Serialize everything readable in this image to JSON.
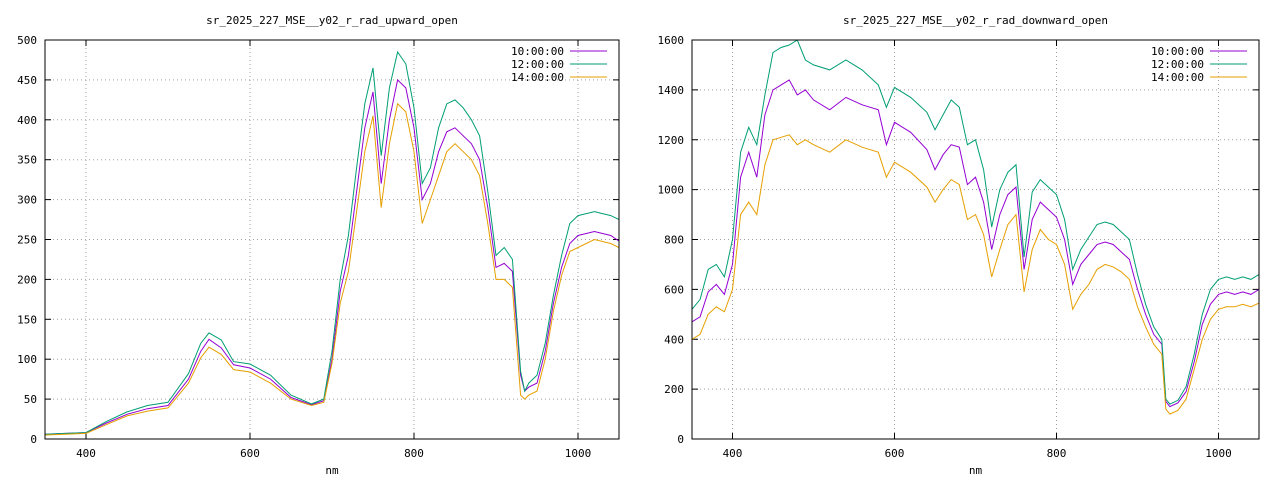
{
  "chart_data": [
    {
      "type": "line",
      "title": "sr_2025_227_MSE__y02_r_rad_upward_open",
      "xlabel": "nm",
      "ylabel": "",
      "xlim": [
        350,
        1050
      ],
      "ylim": [
        0,
        500
      ],
      "xticks": [
        400,
        600,
        800,
        1000
      ],
      "yticks": [
        0,
        50,
        100,
        150,
        200,
        250,
        300,
        350,
        400,
        450,
        500
      ],
      "grid": true,
      "legend": "top-right",
      "x": [
        350,
        375,
        400,
        425,
        450,
        475,
        500,
        525,
        540,
        550,
        565,
        580,
        600,
        625,
        650,
        675,
        690,
        700,
        710,
        720,
        730,
        740,
        750,
        760,
        770,
        780,
        790,
        800,
        810,
        820,
        830,
        840,
        850,
        860,
        870,
        880,
        890,
        900,
        910,
        920,
        930,
        935,
        940,
        950,
        960,
        970,
        980,
        990,
        1000,
        1020,
        1040,
        1050
      ],
      "series": [
        {
          "name": "10:00:00",
          "color": "#9400d3",
          "values": [
            6,
            7,
            8,
            20,
            31,
            38,
            42,
            75,
            110,
            125,
            114,
            93,
            89,
            75,
            52,
            43,
            48,
            100,
            185,
            230,
            310,
            390,
            435,
            320,
            400,
            450,
            440,
            390,
            300,
            320,
            360,
            385,
            390,
            380,
            370,
            350,
            290,
            215,
            220,
            210,
            80,
            60,
            65,
            70,
            110,
            170,
            215,
            245,
            255,
            260,
            255,
            248
          ]
        },
        {
          "name": "12:00:00",
          "color": "#009e73",
          "values": [
            6,
            7,
            8,
            22,
            34,
            42,
            46,
            82,
            120,
            133,
            124,
            97,
            94,
            80,
            55,
            44,
            50,
            110,
            200,
            255,
            340,
            420,
            465,
            355,
            440,
            485,
            470,
            415,
            320,
            340,
            390,
            420,
            425,
            415,
            400,
            380,
            310,
            230,
            240,
            225,
            85,
            60,
            70,
            80,
            120,
            180,
            230,
            270,
            280,
            285,
            280,
            275
          ]
        },
        {
          "name": "14:00:00",
          "color": "#e69f00",
          "values": [
            5,
            6,
            7,
            18,
            29,
            35,
            39,
            70,
            102,
            115,
            106,
            87,
            84,
            70,
            50,
            42,
            46,
            95,
            170,
            210,
            285,
            360,
            405,
            290,
            370,
            420,
            410,
            360,
            270,
            300,
            330,
            360,
            370,
            360,
            350,
            330,
            270,
            200,
            200,
            190,
            55,
            50,
            55,
            60,
            100,
            160,
            205,
            235,
            240,
            250,
            245,
            240
          ]
        }
      ]
    },
    {
      "type": "line",
      "title": "sr_2025_227_MSE__y02_r_rad_downward_open",
      "xlabel": "nm",
      "ylabel": "",
      "xlim": [
        350,
        1050
      ],
      "ylim": [
        0,
        1600
      ],
      "xticks": [
        400,
        600,
        800,
        1000
      ],
      "yticks": [
        0,
        200,
        400,
        600,
        800,
        1000,
        1200,
        1400,
        1600
      ],
      "grid": true,
      "legend": "top-right",
      "x": [
        350,
        360,
        370,
        380,
        390,
        400,
        410,
        420,
        430,
        440,
        450,
        460,
        470,
        480,
        490,
        500,
        520,
        540,
        560,
        580,
        590,
        600,
        620,
        640,
        650,
        660,
        670,
        680,
        690,
        700,
        710,
        720,
        730,
        740,
        750,
        760,
        770,
        780,
        790,
        800,
        810,
        820,
        830,
        840,
        850,
        860,
        870,
        880,
        890,
        900,
        910,
        920,
        930,
        935,
        940,
        950,
        960,
        970,
        980,
        990,
        1000,
        1010,
        1020,
        1030,
        1040,
        1050
      ],
      "series": [
        {
          "name": "10:00:00",
          "color": "#9400d3",
          "values": [
            470,
            490,
            590,
            620,
            580,
            700,
            1050,
            1150,
            1050,
            1300,
            1400,
            1420,
            1440,
            1380,
            1400,
            1360,
            1320,
            1370,
            1340,
            1320,
            1180,
            1270,
            1230,
            1160,
            1080,
            1140,
            1180,
            1170,
            1020,
            1050,
            950,
            760,
            900,
            980,
            1010,
            680,
            880,
            950,
            920,
            890,
            800,
            620,
            700,
            740,
            780,
            790,
            780,
            750,
            720,
            600,
            500,
            420,
            380,
            150,
            130,
            145,
            190,
            310,
            460,
            540,
            580,
            590,
            580,
            590,
            580,
            600
          ]
        },
        {
          "name": "12:00:00",
          "color": "#009e73",
          "values": [
            520,
            560,
            680,
            700,
            650,
            800,
            1150,
            1250,
            1180,
            1380,
            1550,
            1570,
            1580,
            1600,
            1520,
            1500,
            1480,
            1520,
            1480,
            1420,
            1330,
            1410,
            1370,
            1310,
            1240,
            1300,
            1360,
            1330,
            1180,
            1200,
            1080,
            850,
            1000,
            1070,
            1100,
            730,
            990,
            1040,
            1010,
            980,
            880,
            680,
            760,
            810,
            860,
            870,
            860,
            830,
            800,
            660,
            540,
            450,
            400,
            160,
            140,
            155,
            210,
            340,
            500,
            600,
            640,
            650,
            640,
            650,
            640,
            660
          ]
        },
        {
          "name": "14:00:00",
          "color": "#e69f00",
          "values": [
            400,
            420,
            500,
            530,
            510,
            600,
            900,
            950,
            900,
            1100,
            1200,
            1210,
            1220,
            1180,
            1200,
            1180,
            1150,
            1200,
            1170,
            1150,
            1050,
            1110,
            1070,
            1010,
            950,
            1000,
            1040,
            1020,
            880,
            900,
            820,
            650,
            760,
            860,
            900,
            590,
            760,
            840,
            800,
            780,
            700,
            520,
            580,
            620,
            680,
            700,
            690,
            670,
            640,
            530,
            450,
            380,
            340,
            120,
            100,
            115,
            160,
            280,
            400,
            480,
            520,
            530,
            530,
            540,
            530,
            545
          ]
        }
      ]
    }
  ]
}
